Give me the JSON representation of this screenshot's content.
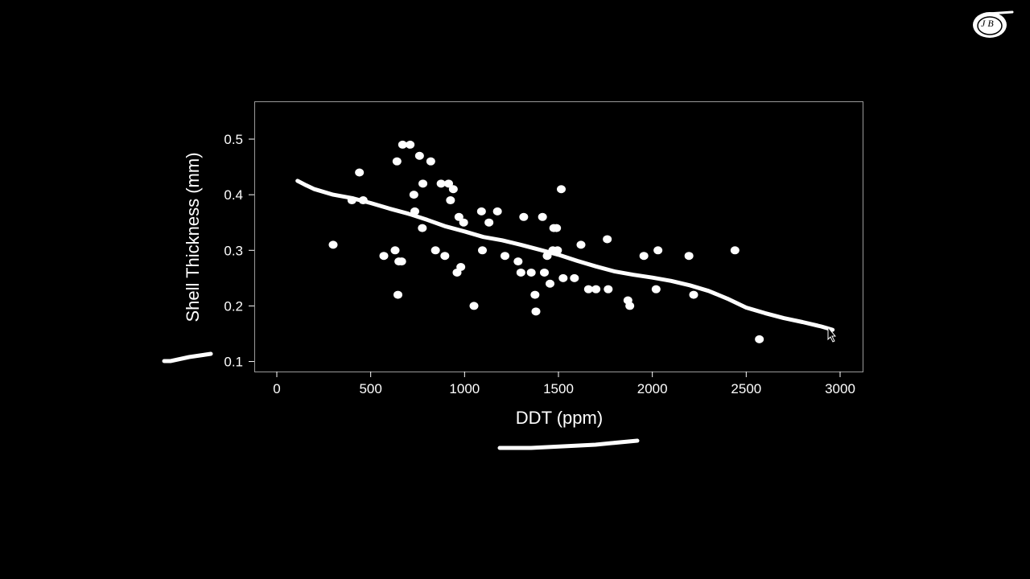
{
  "logo": {
    "icon": "jb-sigma-logo",
    "text": "J B"
  },
  "chart_data": {
    "type": "scatter",
    "title": "",
    "xlabel": "DDT (ppm)",
    "ylabel": "Shell Thickness (mm)",
    "xlim": [
      -120,
      3120
    ],
    "ylim": [
      0.082,
      0.568
    ],
    "xticks": [
      0,
      500,
      1000,
      1500,
      2000,
      2500,
      3000
    ],
    "yticks": [
      0.1,
      0.2,
      0.3,
      0.4,
      0.5
    ],
    "grid": false,
    "legend": "none",
    "series": [
      {
        "kind": "points",
        "points": [
          [
            300,
            0.31
          ],
          [
            400,
            0.39
          ],
          [
            440,
            0.44
          ],
          [
            460,
            0.39
          ],
          [
            570,
            0.29
          ],
          [
            630,
            0.3
          ],
          [
            640,
            0.46
          ],
          [
            645,
            0.22
          ],
          [
            650,
            0.28
          ],
          [
            665,
            0.28
          ],
          [
            670,
            0.49
          ],
          [
            710,
            0.49
          ],
          [
            730,
            0.4
          ],
          [
            735,
            0.37
          ],
          [
            760,
            0.47
          ],
          [
            775,
            0.34
          ],
          [
            778,
            0.42
          ],
          [
            820,
            0.46
          ],
          [
            845,
            0.3
          ],
          [
            875,
            0.42
          ],
          [
            895,
            0.29
          ],
          [
            915,
            0.42
          ],
          [
            925,
            0.39
          ],
          [
            940,
            0.41
          ],
          [
            960,
            0.26
          ],
          [
            970,
            0.36
          ],
          [
            980,
            0.27
          ],
          [
            995,
            0.35
          ],
          [
            1050,
            0.2
          ],
          [
            1090,
            0.37
          ],
          [
            1095,
            0.3
          ],
          [
            1130,
            0.35
          ],
          [
            1175,
            0.37
          ],
          [
            1215,
            0.29
          ],
          [
            1285,
            0.28
          ],
          [
            1300,
            0.26
          ],
          [
            1315,
            0.36
          ],
          [
            1355,
            0.26
          ],
          [
            1375,
            0.22
          ],
          [
            1380,
            0.19
          ],
          [
            1415,
            0.36
          ],
          [
            1425,
            0.26
          ],
          [
            1440,
            0.29
          ],
          [
            1455,
            0.24
          ],
          [
            1470,
            0.3
          ],
          [
            1475,
            0.34
          ],
          [
            1490,
            0.34
          ],
          [
            1495,
            0.3
          ],
          [
            1515,
            0.41
          ],
          [
            1525,
            0.25
          ],
          [
            1585,
            0.25
          ],
          [
            1620,
            0.31
          ],
          [
            1660,
            0.23
          ],
          [
            1700,
            0.23
          ],
          [
            1760,
            0.32
          ],
          [
            1765,
            0.23
          ],
          [
            1870,
            0.21
          ],
          [
            1880,
            0.2
          ],
          [
            1955,
            0.29
          ],
          [
            2020,
            0.23
          ],
          [
            2030,
            0.3
          ],
          [
            2195,
            0.29
          ],
          [
            2220,
            0.22
          ],
          [
            2440,
            0.3
          ],
          [
            2570,
            0.14
          ]
        ]
      },
      {
        "kind": "smooth-line",
        "points": [
          [
            110,
            0.425
          ],
          [
            150,
            0.418
          ],
          [
            200,
            0.41
          ],
          [
            300,
            0.4
          ],
          [
            400,
            0.394
          ],
          [
            500,
            0.385
          ],
          [
            600,
            0.375
          ],
          [
            700,
            0.366
          ],
          [
            800,
            0.355
          ],
          [
            900,
            0.343
          ],
          [
            1000,
            0.334
          ],
          [
            1100,
            0.324
          ],
          [
            1200,
            0.318
          ],
          [
            1300,
            0.31
          ],
          [
            1400,
            0.301
          ],
          [
            1500,
            0.292
          ],
          [
            1600,
            0.281
          ],
          [
            1700,
            0.271
          ],
          [
            1800,
            0.262
          ],
          [
            1900,
            0.256
          ],
          [
            2000,
            0.251
          ],
          [
            2100,
            0.245
          ],
          [
            2200,
            0.237
          ],
          [
            2300,
            0.227
          ],
          [
            2400,
            0.213
          ],
          [
            2500,
            0.197
          ],
          [
            2600,
            0.187
          ],
          [
            2700,
            0.178
          ],
          [
            2800,
            0.171
          ],
          [
            2900,
            0.163
          ],
          [
            2960,
            0.157
          ]
        ]
      }
    ]
  }
}
